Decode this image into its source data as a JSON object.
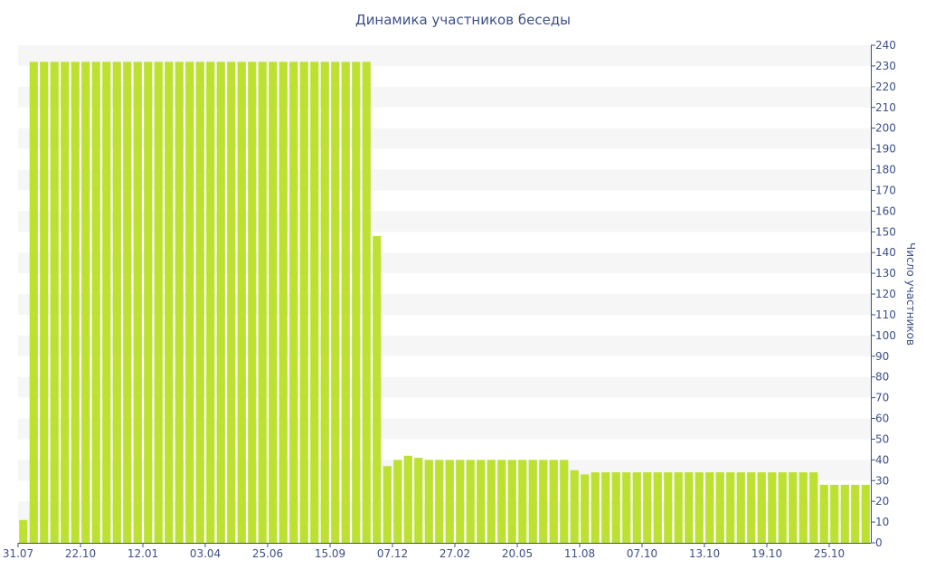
{
  "chart_data": {
    "type": "bar",
    "title": "Динамика участников беседы",
    "ylabel": "Число участников",
    "xlabel": "",
    "ylim": [
      0,
      240
    ],
    "yticks": [
      0,
      10,
      20,
      30,
      40,
      50,
      60,
      70,
      80,
      90,
      100,
      110,
      120,
      130,
      140,
      150,
      160,
      170,
      180,
      190,
      200,
      210,
      220,
      230,
      240
    ],
    "xticks": [
      {
        "index": 0,
        "label": "31.07"
      },
      {
        "index": 6,
        "label": "22.10"
      },
      {
        "index": 12,
        "label": "12.01"
      },
      {
        "index": 18,
        "label": "03.04"
      },
      {
        "index": 24,
        "label": "25.06"
      },
      {
        "index": 30,
        "label": "15.09"
      },
      {
        "index": 36,
        "label": "07.12"
      },
      {
        "index": 42,
        "label": "27.02"
      },
      {
        "index": 48,
        "label": "20.05"
      },
      {
        "index": 54,
        "label": "11.08"
      },
      {
        "index": 60,
        "label": "07.10"
      },
      {
        "index": 66,
        "label": "13.10"
      },
      {
        "index": 72,
        "label": "19.10"
      },
      {
        "index": 78,
        "label": "25.10"
      }
    ],
    "values": [
      11,
      232,
      232,
      232,
      232,
      232,
      232,
      232,
      232,
      232,
      232,
      232,
      232,
      232,
      232,
      232,
      232,
      232,
      232,
      232,
      232,
      232,
      232,
      232,
      232,
      232,
      232,
      232,
      232,
      232,
      232,
      232,
      232,
      232,
      148,
      37,
      40,
      42,
      41,
      40,
      40,
      40,
      40,
      40,
      40,
      40,
      40,
      40,
      40,
      40,
      40,
      40,
      40,
      35,
      33,
      34,
      34,
      34,
      34,
      34,
      34,
      34,
      34,
      34,
      34,
      34,
      34,
      34,
      34,
      34,
      34,
      34,
      34,
      34,
      34,
      34,
      34,
      28,
      28,
      28,
      28,
      28
    ],
    "grid": "alternating horizontal bands",
    "y_axis_side": "right",
    "colors": {
      "bar": "#bce131",
      "band": "#f6f6f6",
      "axis": "#3d4f87",
      "text": "#3d4f87"
    }
  }
}
